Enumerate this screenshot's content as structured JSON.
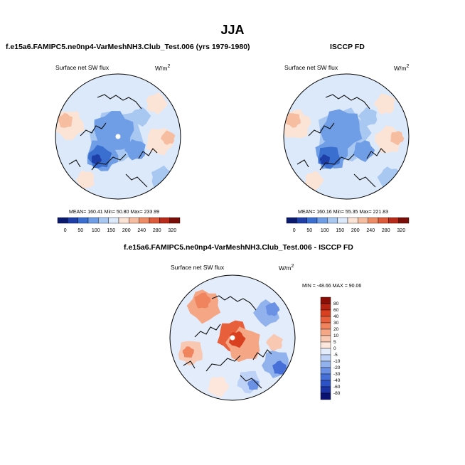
{
  "main_title": "JJA",
  "panels": [
    {
      "title": "f.e15a6.FAMIPC5.ne0np4-VarMeshNH3.Club_Test.006 (yrs 1979-1980)",
      "variable": "Surface net SW flux",
      "units": "W/m",
      "units_sup": "2",
      "stats": "MEAN= 160.41  Min=  50.80  Max= 233.99"
    },
    {
      "title": "ISCCP FD",
      "variable": "Surface net SW flux",
      "units": "W/m",
      "units_sup": "2",
      "stats": "MEAN= 160.16  Min=  55.35  Max= 221.83"
    },
    {
      "title": "f.e15a6.FAMIPC5.ne0np4-VarMeshNH3.Club_Test.006 - ISCCP FD",
      "variable": "Surface net SW flux",
      "units": "W/m",
      "units_sup": "2",
      "stats": "MIN = -48.66 MAX =  90.06"
    }
  ],
  "colors": {
    "abs_scale": [
      "#0a1a6e",
      "#1f3fa8",
      "#3a6fd0",
      "#6f9ee6",
      "#a8c8f2",
      "#dce9fa",
      "#fbe4d6",
      "#f6bda0",
      "#ee8c66",
      "#dd5a3a",
      "#b82a1a",
      "#7a0f0a"
    ],
    "diff_scale": [
      "#0a1272",
      "#1c33a4",
      "#2d52c6",
      "#466fd8",
      "#6a91e4",
      "#92b2ee",
      "#bdd2f6",
      "#e3ecfb",
      "#fde6dc",
      "#f9c8b2",
      "#f5a685",
      "#ef845e",
      "#e8603b",
      "#d8401f",
      "#b52412",
      "#8a0f06"
    ]
  },
  "chart_data": [
    {
      "type": "heatmap",
      "projection": "north-polar-stereographic",
      "title": "f.e15a6.FAMIPC5.ne0np4-VarMeshNH3.Club_Test.006 (yrs 1979-1980)",
      "variable": "Surface net SW flux",
      "units": "W/m2",
      "mean": 160.41,
      "min": 50.8,
      "max": 233.99,
      "colorbar_labels": [
        "0",
        "50",
        "100",
        "150",
        "200",
        "240",
        "280",
        "320"
      ]
    },
    {
      "type": "heatmap",
      "projection": "north-polar-stereographic",
      "title": "ISCCP FD",
      "variable": "Surface net SW flux",
      "units": "W/m2",
      "mean": 160.16,
      "min": 55.35,
      "max": 221.83,
      "colorbar_labels": [
        "0",
        "50",
        "100",
        "150",
        "200",
        "240",
        "280",
        "320"
      ]
    },
    {
      "type": "heatmap",
      "projection": "north-polar-stereographic",
      "title": "f.e15a6.FAMIPC5.ne0np4-VarMeshNH3.Club_Test.006 - ISCCP FD",
      "variable": "Surface net SW flux",
      "units": "W/m2",
      "min": -48.66,
      "max": 90.06,
      "colorbar_labels": [
        "80",
        "60",
        "40",
        "30",
        "20",
        "10",
        "5",
        "0",
        "-5",
        "-10",
        "-20",
        "-30",
        "-40",
        "-60",
        "-80"
      ]
    }
  ]
}
